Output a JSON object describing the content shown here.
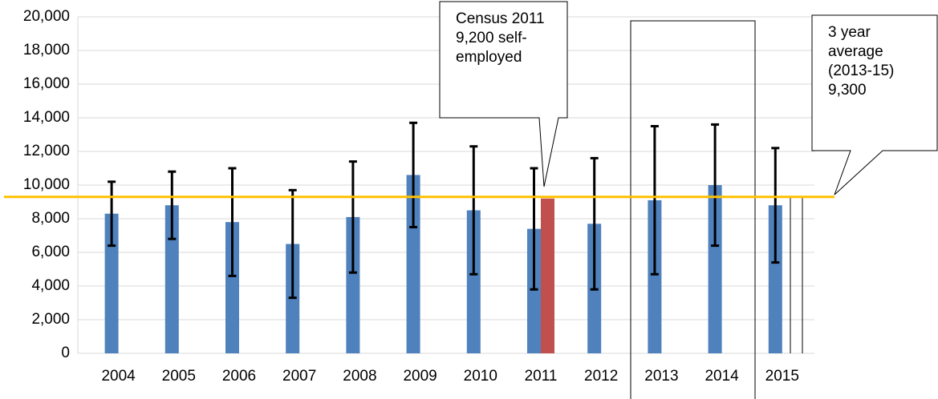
{
  "chart_data": {
    "type": "bar",
    "categories": [
      "2004",
      "2005",
      "2006",
      "2007",
      "2008",
      "2009",
      "2010",
      "2011",
      "2012",
      "2013",
      "2014",
      "2015"
    ],
    "series": [
      {
        "color": "#4f81bd",
        "values": [
          8300,
          8800,
          7800,
          6500,
          8100,
          10600,
          8500,
          7400,
          7700,
          9100,
          10000,
          8800
        ],
        "error_low": [
          6400,
          6800,
          4600,
          3300,
          4800,
          7500,
          4700,
          3800,
          3800,
          4700,
          6400,
          5400
        ],
        "error_high": [
          10200,
          10800,
          11000,
          9700,
          11400,
          13700,
          12300,
          11000,
          11600,
          13500,
          13600,
          12200
        ]
      },
      {
        "color": "#c0504d",
        "values": [
          null,
          null,
          null,
          null,
          null,
          null,
          null,
          9200,
          null,
          null,
          null,
          null
        ]
      }
    ],
    "reference_line": {
      "value": 9300,
      "color": "#ffc000"
    },
    "annotations": [
      {
        "lines": [
          "Census 2011",
          "9,200 self-",
          "employed"
        ]
      },
      {
        "lines": [
          "3 year",
          "average",
          "(2013-15)",
          "9,300"
        ]
      }
    ],
    "ylim": [
      0,
      20000
    ],
    "yticks": [
      0,
      {
        "value": 2000,
        "label": "2,000"
      },
      {
        "value": 4000,
        "label": "4,000"
      },
      {
        "value": 6000,
        "label": "6,000"
      },
      {
        "value": 8000,
        "label": "8,000"
      },
      {
        "value": 10000,
        "label": "10,000"
      },
      {
        "value": 12000,
        "label": "12,000"
      },
      {
        "value": 14000,
        "label": "14,000"
      },
      {
        "value": 16000,
        "label": "16,000"
      },
      {
        "value": 18000,
        "label": "18,000"
      },
      {
        "value": 20000,
        "label": "20,000"
      }
    ],
    "grid": true
  }
}
